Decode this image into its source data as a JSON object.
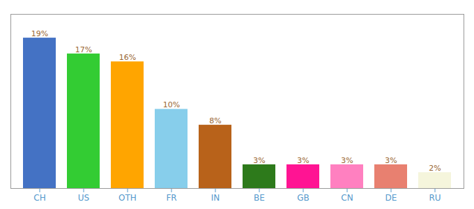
{
  "chart_data": {
    "type": "bar",
    "categories": [
      "CH",
      "US",
      "OTH",
      "FR",
      "IN",
      "BE",
      "GB",
      "CN",
      "DE",
      "RU"
    ],
    "values": [
      19,
      17,
      16,
      10,
      8,
      3,
      3,
      3,
      3,
      2
    ],
    "value_labels": [
      "19%",
      "17%",
      "16%",
      "10%",
      "8%",
      "3%",
      "3%",
      "3%",
      "3%",
      "2%"
    ],
    "colors": [
      "#4472C4",
      "#33CC33",
      "#FFA500",
      "#87CEEB",
      "#B8621A",
      "#2D7A1B",
      "#FF1493",
      "#FF80C0",
      "#E88070",
      "#F5F5DC"
    ],
    "ylim": [
      0,
      22
    ],
    "grid": false,
    "data_labels": true,
    "tick_labels": "x"
  }
}
